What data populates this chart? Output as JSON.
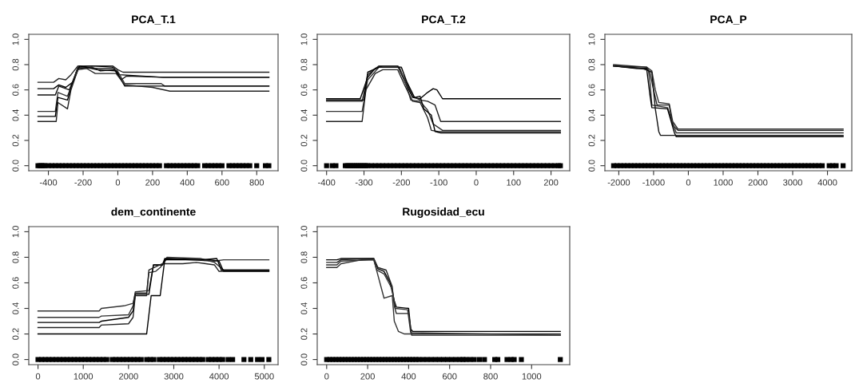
{
  "chart_data": [
    {
      "type": "line",
      "title": "PCA_T.1",
      "xlim": [
        -513,
        923
      ],
      "xticks": [
        -400,
        -200,
        0,
        200,
        400,
        600,
        800
      ],
      "ylim": [
        -0.04,
        1.04
      ],
      "yticks": [
        {
          "value": 0,
          "label": "0.0"
        },
        {
          "value": 0.2,
          "label": "0.2"
        },
        {
          "value": 0.4,
          "label": "0.4"
        },
        {
          "value": 0.6,
          "label": "0.6"
        },
        {
          "value": 0.8,
          "label": "0.8"
        },
        {
          "value": 1,
          "label": "1.0"
        }
      ],
      "grid": false,
      "legend": false,
      "series": [
        {
          "color": "#222222",
          "x": [
            -460,
            -370,
            -340,
            -300,
            -270,
            -230,
            -30,
            0,
            30,
            870
          ],
          "values": [
            0.66,
            0.66,
            0.69,
            0.68,
            0.72,
            0.79,
            0.79,
            0.76,
            0.74,
            0.74
          ]
        },
        {
          "color": "#000000",
          "x": [
            -460,
            -370,
            -340,
            -300,
            -260,
            -230,
            -150,
            -30,
            10,
            260,
            870
          ],
          "values": [
            0.61,
            0.61,
            0.64,
            0.62,
            0.66,
            0.78,
            0.79,
            0.78,
            0.72,
            0.7,
            0.7
          ]
        },
        {
          "color": "#111111",
          "x": [
            -460,
            -360,
            -340,
            -280,
            -230,
            -150,
            -100,
            -20,
            20,
            50,
            260,
            870
          ],
          "values": [
            0.56,
            0.56,
            0.63,
            0.6,
            0.77,
            0.78,
            0.75,
            0.76,
            0.68,
            0.71,
            0.7,
            0.7
          ]
        },
        {
          "color": "#333333",
          "x": [
            -460,
            -360,
            -345,
            -290,
            -270,
            -230,
            -120,
            -10,
            40,
            250,
            270,
            870
          ],
          "values": [
            0.43,
            0.43,
            0.58,
            0.55,
            0.62,
            0.78,
            0.77,
            0.77,
            0.65,
            0.65,
            0.63,
            0.63
          ]
        },
        {
          "color": "#000000",
          "x": [
            -460,
            -360,
            -345,
            -290,
            -265,
            -220,
            -120,
            -10,
            40,
            230,
            270,
            870
          ],
          "values": [
            0.39,
            0.39,
            0.54,
            0.52,
            0.64,
            0.79,
            0.76,
            0.75,
            0.63,
            0.63,
            0.63,
            0.63
          ]
        },
        {
          "color": "#222222",
          "x": [
            -460,
            -355,
            -345,
            -290,
            -270,
            -230,
            -180,
            -130,
            -10,
            40,
            200,
            300,
            870
          ],
          "values": [
            0.35,
            0.35,
            0.5,
            0.45,
            0.6,
            0.76,
            0.77,
            0.73,
            0.73,
            0.64,
            0.62,
            0.59,
            0.59
          ]
        },
        {
          "type": "scatter",
          "color": "#000000",
          "marker": "square",
          "x": [
            -460,
            -450,
            -440,
            -430,
            -420,
            -400,
            -380,
            -360,
            -340,
            -320,
            -300,
            -280,
            -260,
            -240,
            -220,
            -200,
            -180,
            -160,
            -140,
            -120,
            -100,
            -80,
            -60,
            -40,
            -20,
            0,
            20,
            40,
            60,
            80,
            100,
            120,
            140,
            160,
            180,
            200,
            220,
            240,
            280,
            300,
            320,
            340,
            360,
            380,
            400,
            420,
            440,
            460,
            500,
            520,
            540,
            560,
            580,
            600,
            640,
            660,
            680,
            700,
            720,
            740,
            760,
            800,
            850,
            870
          ],
          "values": [
            0,
            0,
            0,
            0,
            0,
            0,
            0,
            0,
            0,
            0,
            0,
            0,
            0,
            0,
            0,
            0,
            0,
            0,
            0,
            0,
            0,
            0,
            0,
            0,
            0,
            0,
            0,
            0,
            0,
            0,
            0,
            0,
            0,
            0,
            0,
            0,
            0,
            0,
            0,
            0,
            0,
            0,
            0,
            0,
            0,
            0,
            0,
            0,
            0,
            0,
            0,
            0,
            0,
            0,
            0,
            0,
            0,
            0,
            0,
            0,
            0,
            0,
            0,
            0
          ]
        }
      ]
    },
    {
      "type": "line",
      "title": "PCA_T.2",
      "xlim": [
        -425,
        250
      ],
      "xticks": [
        -400,
        -300,
        -200,
        -100,
        0,
        100,
        200
      ],
      "ylim": [
        -0.04,
        1.04
      ],
      "yticks": [
        {
          "value": 0,
          "label": "0.0"
        },
        {
          "value": 0.2,
          "label": "0.2"
        },
        {
          "value": 0.4,
          "label": "0.4"
        },
        {
          "value": 0.6,
          "label": "0.6"
        },
        {
          "value": 0.8,
          "label": "0.8"
        },
        {
          "value": 1,
          "label": "1.0"
        }
      ],
      "grid": false,
      "legend": false,
      "series": [
        {
          "color": "#000000",
          "x": [
            -400,
            -310,
            -290,
            -270,
            -250,
            -210,
            -190,
            -170,
            -150,
            -130,
            -115,
            -105,
            -90,
            225
          ],
          "values": [
            0.53,
            0.53,
            0.7,
            0.77,
            0.79,
            0.79,
            0.66,
            0.54,
            0.53,
            0.58,
            0.61,
            0.6,
            0.53,
            0.53
          ]
        },
        {
          "color": "#222222",
          "x": [
            -400,
            -305,
            -290,
            -260,
            -210,
            -190,
            -170,
            -150,
            -130,
            -110,
            -95,
            225
          ],
          "values": [
            0.51,
            0.51,
            0.72,
            0.79,
            0.79,
            0.68,
            0.55,
            0.52,
            0.51,
            0.48,
            0.35,
            0.35
          ]
        },
        {
          "color": "#333333",
          "x": [
            -400,
            -305,
            -290,
            -260,
            -205,
            -185,
            -175,
            -150,
            -130,
            -115,
            -90,
            225
          ],
          "values": [
            0.43,
            0.43,
            0.68,
            0.78,
            0.78,
            0.62,
            0.52,
            0.51,
            0.44,
            0.33,
            0.28,
            0.28
          ]
        },
        {
          "color": "#222222",
          "x": [
            -400,
            -305,
            -295,
            -270,
            -250,
            -210,
            -190,
            -170,
            -150,
            -130,
            -120,
            -100,
            225
          ],
          "values": [
            0.35,
            0.35,
            0.6,
            0.73,
            0.76,
            0.76,
            0.63,
            0.51,
            0.5,
            0.38,
            0.28,
            0.27,
            0.27
          ]
        },
        {
          "color": "#000000",
          "x": [
            -400,
            -300,
            -290,
            -260,
            -200,
            -185,
            -165,
            -150,
            -140,
            -120,
            -110,
            -95,
            225
          ],
          "values": [
            0.52,
            0.52,
            0.74,
            0.78,
            0.78,
            0.66,
            0.54,
            0.55,
            0.45,
            0.4,
            0.27,
            0.26,
            0.26
          ]
        },
        {
          "type": "scatter",
          "color": "#000000",
          "marker": "square",
          "x": [
            -400,
            -385,
            -375,
            -350,
            -345,
            -340,
            -335,
            -330,
            -325,
            -320,
            -315,
            -310,
            -305,
            -300,
            -295,
            -290,
            -280,
            -270,
            -260,
            -250,
            -240,
            -230,
            -220,
            -210,
            -200,
            -190,
            -180,
            -170,
            -160,
            -150,
            -140,
            -130,
            -120,
            -110,
            -100,
            -90,
            -80,
            -70,
            -60,
            -50,
            -40,
            -30,
            -20,
            -10,
            0,
            10,
            20,
            30,
            40,
            50,
            60,
            70,
            80,
            90,
            100,
            110,
            120,
            130,
            140,
            150,
            160,
            170,
            180,
            190,
            200,
            210,
            220,
            225
          ],
          "values": [
            0,
            0,
            0,
            0,
            0,
            0,
            0,
            0,
            0,
            0,
            0,
            0,
            0,
            0,
            0,
            0,
            0,
            0,
            0,
            0,
            0,
            0,
            0,
            0,
            0,
            0,
            0,
            0,
            0,
            0,
            0,
            0,
            0,
            0,
            0,
            0,
            0,
            0,
            0,
            0,
            0,
            0,
            0,
            0,
            0,
            0,
            0,
            0,
            0,
            0,
            0,
            0,
            0,
            0,
            0,
            0,
            0,
            0,
            0,
            0,
            0,
            0,
            0,
            0,
            0,
            0,
            0,
            0
          ]
        }
      ]
    },
    {
      "type": "line",
      "title": "PCA_P",
      "xlim": [
        -2400,
        4700
      ],
      "xticks": [
        -2000,
        -1000,
        0,
        1000,
        2000,
        3000,
        4000
      ],
      "ylim": [
        -0.04,
        1.04
      ],
      "yticks": [
        {
          "value": 0,
          "label": "0.0"
        },
        {
          "value": 0.2,
          "label": "0.2"
        },
        {
          "value": 0.4,
          "label": "0.4"
        },
        {
          "value": 0.6,
          "label": "0.6"
        },
        {
          "value": 0.8,
          "label": "0.8"
        },
        {
          "value": 1,
          "label": "1.0"
        }
      ],
      "grid": false,
      "legend": false,
      "series": [
        {
          "color": "#333333",
          "x": [
            -2150,
            -1200,
            -1050,
            -950,
            -850,
            -550,
            -450,
            -300,
            4450
          ],
          "values": [
            0.8,
            0.78,
            0.75,
            0.6,
            0.5,
            0.49,
            0.35,
            0.29,
            0.29
          ]
        },
        {
          "color": "#222222",
          "x": [
            -2150,
            -1200,
            -1100,
            -1000,
            -900,
            -550,
            -450,
            -300,
            4450
          ],
          "values": [
            0.79,
            0.78,
            0.73,
            0.6,
            0.48,
            0.48,
            0.32,
            0.28,
            0.28
          ]
        },
        {
          "color": "#333333",
          "x": [
            -2150,
            -1400,
            -1150,
            -1100,
            -1050,
            -600,
            -500,
            -350,
            4450
          ],
          "values": [
            0.79,
            0.77,
            0.76,
            0.65,
            0.48,
            0.46,
            0.38,
            0.26,
            0.26
          ]
        },
        {
          "color": "#000000",
          "x": [
            -2150,
            -1500,
            -1200,
            -1100,
            -1050,
            -600,
            -400,
            -350,
            4450
          ],
          "values": [
            0.79,
            0.77,
            0.77,
            0.55,
            0.46,
            0.45,
            0.26,
            0.23,
            0.23
          ]
        },
        {
          "color": "#111111",
          "x": [
            -2150,
            -1300,
            -1050,
            -950,
            -850,
            -800,
            -400,
            4450
          ],
          "values": [
            0.79,
            0.77,
            0.74,
            0.45,
            0.27,
            0.24,
            0.24,
            0.24
          ]
        },
        {
          "type": "scatter",
          "color": "#000000",
          "marker": "square",
          "x": [
            -2150,
            -2050,
            -1950,
            -1850,
            -1750,
            -1650,
            -1550,
            -1450,
            -1350,
            -1250,
            -1150,
            -1050,
            -950,
            -850,
            -750,
            -650,
            -550,
            -450,
            -350,
            -250,
            -150,
            -50,
            50,
            150,
            250,
            350,
            450,
            550,
            650,
            750,
            850,
            950,
            1050,
            1150,
            1250,
            1350,
            1450,
            1550,
            1650,
            1750,
            1850,
            1950,
            2050,
            2150,
            2250,
            2350,
            2450,
            2550,
            2650,
            2750,
            2850,
            2950,
            3050,
            3150,
            3250,
            3350,
            3450,
            3550,
            3650,
            3750,
            3850,
            4050,
            4150,
            4250,
            4450
          ],
          "values": [
            0,
            0,
            0,
            0,
            0,
            0,
            0,
            0,
            0,
            0,
            0,
            0,
            0,
            0,
            0,
            0,
            0,
            0,
            0,
            0,
            0,
            0,
            0,
            0,
            0,
            0,
            0,
            0,
            0,
            0,
            0,
            0,
            0,
            0,
            0,
            0,
            0,
            0,
            0,
            0,
            0,
            0,
            0,
            0,
            0,
            0,
            0,
            0,
            0,
            0,
            0,
            0,
            0,
            0,
            0,
            0,
            0,
            0,
            0,
            0,
            0,
            0,
            0,
            0,
            0
          ]
        }
      ]
    },
    {
      "type": "line",
      "title": "dem_continente",
      "xlim": [
        -204,
        5304
      ],
      "xticks": [
        0,
        1000,
        2000,
        3000,
        4000,
        5000
      ],
      "ylim": [
        -0.04,
        1.04
      ],
      "yticks": [
        {
          "value": 0,
          "label": "0.0"
        },
        {
          "value": 0.2,
          "label": "0.2"
        },
        {
          "value": 0.4,
          "label": "0.4"
        },
        {
          "value": 0.6,
          "label": "0.6"
        },
        {
          "value": 0.8,
          "label": "0.8"
        },
        {
          "value": 1,
          "label": "1.0"
        }
      ],
      "grid": false,
      "legend": false,
      "series": [
        {
          "color": "#333333",
          "x": [
            0,
            1350,
            1400,
            1900,
            2100,
            2150,
            2400,
            2450,
            2600,
            2700,
            2850,
            3900,
            4100,
            5100
          ],
          "values": [
            0.38,
            0.38,
            0.4,
            0.42,
            0.44,
            0.52,
            0.52,
            0.68,
            0.69,
            0.72,
            0.79,
            0.77,
            0.78,
            0.78
          ]
        },
        {
          "color": "#333333",
          "x": [
            0,
            1350,
            1400,
            2000,
            2100,
            2150,
            2450,
            2550,
            2750,
            2850,
            3600,
            3900,
            4100,
            5100
          ],
          "values": [
            0.33,
            0.33,
            0.34,
            0.35,
            0.42,
            0.53,
            0.54,
            0.74,
            0.74,
            0.8,
            0.79,
            0.76,
            0.7,
            0.7
          ]
        },
        {
          "color": "#000000",
          "x": [
            0,
            1350,
            1400,
            2000,
            2100,
            2150,
            2450,
            2550,
            2750,
            2800,
            3800,
            4000,
            4100,
            5100
          ],
          "values": [
            0.29,
            0.29,
            0.3,
            0.33,
            0.38,
            0.51,
            0.51,
            0.74,
            0.74,
            0.79,
            0.78,
            0.77,
            0.69,
            0.69
          ]
        },
        {
          "color": "#222222",
          "x": [
            0,
            1350,
            1400,
            2000,
            2100,
            2150,
            2400,
            2450,
            2750,
            2850,
            3200,
            3500,
            3900,
            4000,
            5100
          ],
          "values": [
            0.25,
            0.25,
            0.27,
            0.28,
            0.33,
            0.5,
            0.5,
            0.7,
            0.75,
            0.75,
            0.75,
            0.76,
            0.74,
            0.69,
            0.69
          ]
        },
        {
          "color": "#000000",
          "x": [
            0,
            1550,
            2400,
            2500,
            2700,
            2800,
            3600,
            3950,
            4050,
            5100
          ],
          "values": [
            0.2,
            0.2,
            0.2,
            0.5,
            0.5,
            0.78,
            0.78,
            0.79,
            0.7,
            0.7
          ]
        },
        {
          "type": "scatter",
          "color": "#000000",
          "marker": "square",
          "x": [
            0,
            80,
            160,
            240,
            320,
            400,
            480,
            560,
            640,
            720,
            800,
            880,
            960,
            1040,
            1120,
            1200,
            1280,
            1360,
            1440,
            1520,
            1640,
            1720,
            1800,
            1880,
            1960,
            2040,
            2120,
            2200,
            2280,
            2400,
            2480,
            2560,
            2680,
            2760,
            2840,
            2920,
            3000,
            3080,
            3160,
            3240,
            3320,
            3400,
            3480,
            3560,
            3640,
            3760,
            3840,
            3920,
            4000,
            4080,
            4200,
            4300,
            4550,
            4700,
            4850,
            4950,
            5100
          ],
          "values": [
            0,
            0,
            0,
            0,
            0,
            0,
            0,
            0,
            0,
            0,
            0,
            0,
            0,
            0,
            0,
            0,
            0,
            0,
            0,
            0,
            0,
            0,
            0,
            0,
            0,
            0,
            0,
            0,
            0,
            0,
            0,
            0,
            0,
            0,
            0,
            0,
            0,
            0,
            0,
            0,
            0,
            0,
            0,
            0,
            0,
            0,
            0,
            0,
            0,
            0,
            0,
            0,
            0,
            0,
            0,
            0,
            0
          ]
        }
      ]
    },
    {
      "type": "line",
      "title": "Rugosidad_ecu",
      "xlim": [
        -46,
        1186
      ],
      "xticks": [
        0,
        200,
        400,
        600,
        800,
        1000
      ],
      "ylim": [
        -0.04,
        1.04
      ],
      "yticks": [
        {
          "value": 0,
          "label": "0.0"
        },
        {
          "value": 0.2,
          "label": "0.2"
        },
        {
          "value": 0.4,
          "label": "0.4"
        },
        {
          "value": 0.6,
          "label": "0.6"
        },
        {
          "value": 0.8,
          "label": "0.8"
        },
        {
          "value": 1,
          "label": "1.0"
        }
      ],
      "grid": false,
      "legend": false,
      "series": [
        {
          "color": "#000000",
          "x": [
            0,
            50,
            70,
            230,
            250,
            280,
            310,
            330,
            340,
            400,
            410,
            420,
            1140
          ],
          "values": [
            0.78,
            0.78,
            0.79,
            0.79,
            0.71,
            0.69,
            0.6,
            0.46,
            0.41,
            0.4,
            0.24,
            0.22,
            0.22
          ]
        },
        {
          "color": "#222222",
          "x": [
            0,
            50,
            70,
            230,
            250,
            290,
            320,
            330,
            340,
            400,
            415,
            1140
          ],
          "values": [
            0.76,
            0.76,
            0.78,
            0.79,
            0.72,
            0.7,
            0.57,
            0.42,
            0.36,
            0.36,
            0.19,
            0.19
          ]
        },
        {
          "color": "#333333",
          "x": [
            0,
            50,
            70,
            230,
            245,
            280,
            320,
            335,
            395,
            410,
            1140
          ],
          "values": [
            0.74,
            0.74,
            0.77,
            0.78,
            0.7,
            0.67,
            0.55,
            0.4,
            0.39,
            0.21,
            0.19
          ]
        },
        {
          "color": "#333333",
          "x": [
            0,
            50,
            70,
            170,
            230,
            260,
            280,
            320,
            330,
            350,
            380,
            1140
          ],
          "values": [
            0.72,
            0.72,
            0.75,
            0.78,
            0.78,
            0.6,
            0.48,
            0.5,
            0.3,
            0.22,
            0.2,
            0.2
          ]
        },
        {
          "type": "scatter",
          "color": "#000000",
          "marker": "square",
          "x": [
            0,
            15,
            30,
            45,
            60,
            75,
            90,
            105,
            120,
            135,
            150,
            165,
            180,
            195,
            210,
            225,
            240,
            255,
            270,
            285,
            300,
            315,
            330,
            345,
            360,
            375,
            390,
            405,
            420,
            435,
            450,
            470,
            490,
            510,
            530,
            550,
            570,
            590,
            610,
            630,
            650,
            665,
            680,
            700,
            720,
            745,
            770,
            820,
            835,
            880,
            900,
            915,
            950,
            1140
          ],
          "values": [
            0,
            0,
            0,
            0,
            0,
            0,
            0,
            0,
            0,
            0,
            0,
            0,
            0,
            0,
            0,
            0,
            0,
            0,
            0,
            0,
            0,
            0,
            0,
            0,
            0,
            0,
            0,
            0,
            0,
            0,
            0,
            0,
            0,
            0,
            0,
            0,
            0,
            0,
            0,
            0,
            0,
            0,
            0,
            0,
            0,
            0,
            0,
            0,
            0,
            0,
            0,
            0,
            0,
            0
          ]
        }
      ]
    }
  ]
}
